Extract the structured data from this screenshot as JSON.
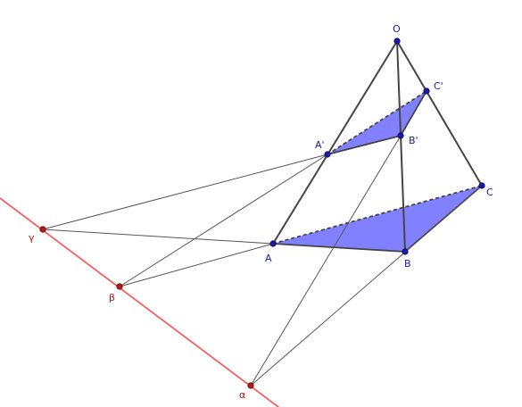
{
  "colors": {
    "background": "#ffffff",
    "edge": "#444444",
    "thin_line": "#555555",
    "axis_line": "#ff4d4d",
    "fill": "#6b6bff",
    "blue_point": "#1a1aa6",
    "blue_label": "#1a1aa6",
    "red_point": "#b31a1a",
    "red_label": "#b31a1a"
  },
  "points": {
    "O": {
      "label": "O"
    },
    "A": {
      "label": "A"
    },
    "B": {
      "label": "B"
    },
    "C": {
      "label": "C"
    },
    "A1": {
      "label": "A'"
    },
    "B1": {
      "label": "B'"
    },
    "C1": {
      "label": "C'"
    },
    "alpha": {
      "label": "α"
    },
    "beta": {
      "label": "β"
    },
    "gamma": {
      "label": "γ"
    }
  }
}
